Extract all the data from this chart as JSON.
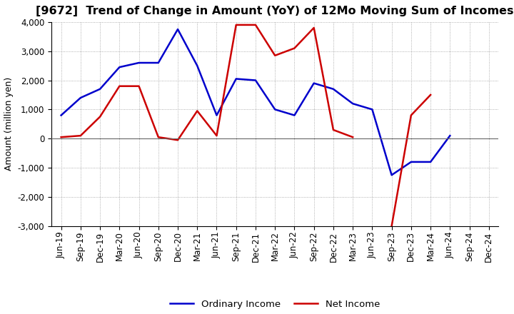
{
  "title": "[9672]  Trend of Change in Amount (YoY) of 12Mo Moving Sum of Incomes",
  "ylabel": "Amount (million yen)",
  "ylim": [
    -3000,
    4000
  ],
  "yticks": [
    -3000,
    -2000,
    -1000,
    0,
    1000,
    2000,
    3000,
    4000
  ],
  "x_labels": [
    "Jun-19",
    "Sep-19",
    "Dec-19",
    "Mar-20",
    "Jun-20",
    "Sep-20",
    "Dec-20",
    "Mar-21",
    "Jun-21",
    "Sep-21",
    "Dec-21",
    "Mar-22",
    "Jun-22",
    "Sep-22",
    "Dec-22",
    "Mar-23",
    "Jun-23",
    "Sep-23",
    "Dec-23",
    "Mar-24",
    "Jun-24",
    "Sep-24",
    "Dec-24"
  ],
  "ordinary_income": [
    800,
    1400,
    1700,
    2450,
    2600,
    2600,
    3750,
    2500,
    800,
    2050,
    2000,
    1000,
    800,
    1900,
    1700,
    1200,
    1000,
    -1250,
    -800,
    -800,
    100,
    null,
    null
  ],
  "net_income": [
    50,
    100,
    750,
    1800,
    1800,
    50,
    -50,
    950,
    100,
    3900,
    3900,
    2850,
    3100,
    3800,
    300,
    50,
    null,
    -3000,
    800,
    1500,
    null,
    null,
    null
  ],
  "ordinary_income_color": "#0000cc",
  "net_income_color": "#cc0000",
  "background_color": "#ffffff",
  "grid_color": "#999999",
  "legend_labels": [
    "Ordinary Income",
    "Net Income"
  ],
  "title_fontsize": 11.5,
  "axis_fontsize": 9,
  "tick_fontsize": 8.5,
  "linewidth": 1.8
}
